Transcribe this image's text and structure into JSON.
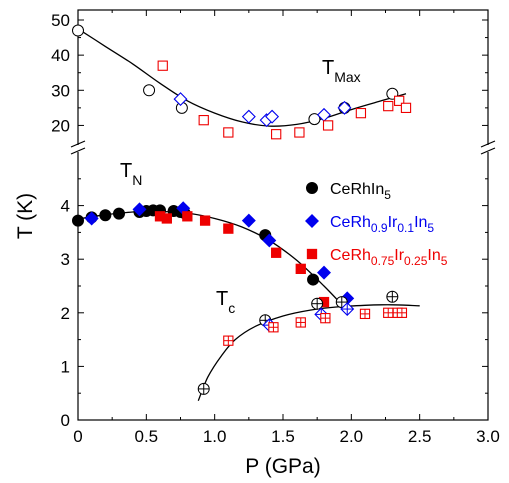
{
  "chart_data": {
    "type": "scatter",
    "title": "",
    "xlabel": "P (GPa)",
    "ylabel": "T (K)",
    "x_ticks": [
      "0",
      "0.5",
      "1.0",
      "1.5",
      "2.0",
      "2.5",
      "3.0"
    ],
    "xlim": [
      0,
      3.0
    ],
    "lower_panel": {
      "ylim": [
        0,
        5
      ],
      "yticks": [
        "0",
        "1",
        "2",
        "3",
        "4"
      ]
    },
    "upper_panel": {
      "ylim": [
        15,
        50
      ],
      "yticks": [
        "20",
        "30",
        "40",
        "50"
      ]
    },
    "grid": false,
    "legend_position": "right",
    "annotations": {
      "tn": {
        "main": "T",
        "sub": "N"
      },
      "tc": {
        "main": "T",
        "sub": "c"
      },
      "tmax": {
        "main": "T",
        "sub": "Max"
      }
    },
    "legend": [
      {
        "parts": [
          [
            "CeRhIn",
            ""
          ],
          [
            "5",
            "sub"
          ]
        ],
        "color": "#000000",
        "marker": "circle"
      },
      {
        "parts": [
          [
            "CeRh",
            ""
          ],
          [
            "0.9",
            "sub"
          ],
          [
            "Ir",
            ""
          ],
          [
            "0.1",
            "sub"
          ],
          [
            "In",
            ""
          ],
          [
            "5",
            "sub"
          ]
        ],
        "color": "#0000ee",
        "marker": "diamond"
      },
      {
        "parts": [
          [
            "CeRh",
            ""
          ],
          [
            "0.75",
            "sub"
          ],
          [
            "Ir",
            ""
          ],
          [
            "0.25",
            "sub"
          ],
          [
            "In",
            ""
          ],
          [
            "5",
            "sub"
          ]
        ],
        "color": "#ee0000",
        "marker": "square"
      }
    ],
    "series": [
      {
        "name": "CeRhIn5",
        "quantity": "TN",
        "panel": "lower",
        "marker": "circle",
        "filled": true,
        "color": "#000000",
        "points": [
          [
            0.0,
            3.72
          ],
          [
            0.1,
            3.78
          ],
          [
            0.2,
            3.82
          ],
          [
            0.3,
            3.85
          ],
          [
            0.45,
            3.88
          ],
          [
            0.5,
            3.9
          ],
          [
            0.55,
            3.91
          ],
          [
            0.6,
            3.91
          ],
          [
            0.7,
            3.9
          ],
          [
            0.75,
            3.88
          ],
          [
            0.78,
            3.86
          ],
          [
            1.37,
            3.45
          ],
          [
            1.72,
            2.62
          ]
        ]
      },
      {
        "name": "CeRh0.9Ir0.1In5",
        "quantity": "TN",
        "panel": "lower",
        "marker": "diamond",
        "filled": true,
        "color": "#0000ee",
        "points": [
          [
            0.1,
            3.76
          ],
          [
            0.45,
            3.93
          ],
          [
            0.77,
            3.95
          ],
          [
            1.25,
            3.72
          ],
          [
            1.4,
            3.35
          ],
          [
            1.8,
            2.75
          ],
          [
            1.97,
            2.27
          ]
        ]
      },
      {
        "name": "CeRh0.75Ir0.25In5",
        "quantity": "TN",
        "panel": "lower",
        "marker": "square",
        "filled": true,
        "color": "#ee0000",
        "points": [
          [
            0.6,
            3.8
          ],
          [
            0.65,
            3.76
          ],
          [
            0.8,
            3.8
          ],
          [
            0.93,
            3.72
          ],
          [
            1.1,
            3.57
          ],
          [
            1.45,
            3.12
          ],
          [
            1.63,
            2.82
          ],
          [
            1.8,
            2.2
          ]
        ]
      },
      {
        "name": "CeRhIn5",
        "quantity": "Tc",
        "panel": "lower",
        "marker": "circle-cross",
        "filled": false,
        "color": "#000000",
        "points": [
          [
            0.92,
            0.58
          ],
          [
            1.37,
            1.86
          ],
          [
            1.75,
            2.17
          ],
          [
            1.93,
            2.2
          ],
          [
            2.3,
            2.3
          ]
        ]
      },
      {
        "name": "CeRh0.9Ir0.1In5",
        "quantity": "Tc",
        "panel": "lower",
        "marker": "diamond-cross",
        "filled": false,
        "color": "#0000ee",
        "points": [
          [
            1.4,
            1.77
          ],
          [
            1.78,
            1.97
          ],
          [
            1.97,
            2.07
          ]
        ]
      },
      {
        "name": "CeRh0.75Ir0.25In5",
        "quantity": "Tc",
        "panel": "lower",
        "marker": "square-cross",
        "filled": false,
        "color": "#ee0000",
        "points": [
          [
            1.1,
            1.48
          ],
          [
            1.43,
            1.73
          ],
          [
            1.63,
            1.82
          ],
          [
            1.81,
            1.9
          ],
          [
            2.1,
            1.98
          ],
          [
            2.27,
            2.0
          ],
          [
            2.34,
            2.0
          ],
          [
            2.37,
            2.0
          ]
        ]
      },
      {
        "name": "CeRhIn5",
        "quantity": "TMax",
        "panel": "upper",
        "marker": "circle",
        "filled": false,
        "color": "#000000",
        "points": [
          [
            0.0,
            47
          ],
          [
            0.52,
            30
          ],
          [
            0.76,
            25
          ],
          [
            1.73,
            21.8
          ],
          [
            1.95,
            25
          ],
          [
            2.3,
            29
          ]
        ]
      },
      {
        "name": "CeRh0.9Ir0.1In5",
        "quantity": "TMax",
        "panel": "upper",
        "marker": "diamond",
        "filled": false,
        "color": "#0000ee",
        "points": [
          [
            0.75,
            27.5
          ],
          [
            1.25,
            22.5
          ],
          [
            1.38,
            21.5
          ],
          [
            1.42,
            22.5
          ],
          [
            1.8,
            23
          ],
          [
            1.95,
            25
          ]
        ]
      },
      {
        "name": "CeRh0.75Ir0.25In5",
        "quantity": "TMax",
        "panel": "upper",
        "marker": "square",
        "filled": false,
        "color": "#ee0000",
        "points": [
          [
            0.62,
            37
          ],
          [
            0.92,
            21.5
          ],
          [
            1.1,
            18
          ],
          [
            1.45,
            17.5
          ],
          [
            1.62,
            18
          ],
          [
            1.83,
            20
          ],
          [
            2.07,
            23.5
          ],
          [
            2.27,
            25.5
          ],
          [
            2.35,
            27
          ],
          [
            2.4,
            25
          ]
        ]
      }
    ],
    "fit_lines": [
      {
        "name": "TN fit",
        "panel": "lower",
        "points": [
          [
            0.0,
            3.75
          ],
          [
            0.2,
            3.83
          ],
          [
            0.4,
            3.88
          ],
          [
            0.6,
            3.89
          ],
          [
            0.8,
            3.86
          ],
          [
            1.0,
            3.76
          ],
          [
            1.2,
            3.6
          ],
          [
            1.4,
            3.35
          ],
          [
            1.6,
            2.98
          ],
          [
            1.8,
            2.5
          ],
          [
            1.95,
            2.1
          ],
          [
            1.97,
            2.05
          ]
        ]
      },
      {
        "name": "Tc fit",
        "panel": "lower",
        "points": [
          [
            0.88,
            0.36
          ],
          [
            0.95,
            0.8
          ],
          [
            1.05,
            1.2
          ],
          [
            1.15,
            1.5
          ],
          [
            1.3,
            1.75
          ],
          [
            1.5,
            1.94
          ],
          [
            1.7,
            2.05
          ],
          [
            1.9,
            2.11
          ],
          [
            2.1,
            2.14
          ],
          [
            2.3,
            2.15
          ],
          [
            2.5,
            2.13
          ]
        ]
      },
      {
        "name": "TMax fit",
        "panel": "upper",
        "points": [
          [
            0.0,
            47.5
          ],
          [
            0.2,
            42.5
          ],
          [
            0.4,
            37.5
          ],
          [
            0.6,
            32
          ],
          [
            0.8,
            27
          ],
          [
            1.0,
            23.5
          ],
          [
            1.2,
            21
          ],
          [
            1.4,
            19.8
          ],
          [
            1.6,
            20.3
          ],
          [
            1.8,
            22
          ],
          [
            2.0,
            24.5
          ],
          [
            2.2,
            26.8
          ],
          [
            2.4,
            29
          ]
        ]
      }
    ]
  }
}
